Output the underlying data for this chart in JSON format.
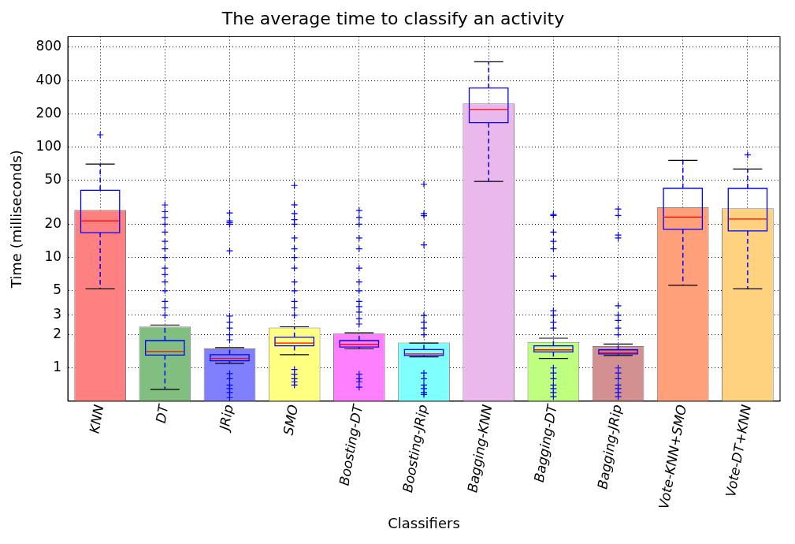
{
  "chart_data": {
    "type": "bar",
    "title": "The average time to classify an activity",
    "xlabel": "Classifiers",
    "ylabel": "Time (milliseconds)",
    "categories": [
      "KNN",
      "DT",
      "JRip",
      "SMO",
      "Boosting-DT",
      "Boosting-JRip",
      "Bagging-KNN",
      "Bagging-DT",
      "Bagging-JRip",
      "Vote-KNN+SMO",
      "Vote-DT+KNN"
    ],
    "series": [
      {
        "type": "bar",
        "colors": [
          "#ff8080",
          "#80bf80",
          "#8080ff",
          "#ffff80",
          "#ff80ff",
          "#80ffff",
          "#eab8ea",
          "#bfff80",
          "#d39090",
          "#ffa07a",
          "#ffd280"
        ],
        "values": [
          27,
          2.37,
          1.5,
          2.32,
          2.06,
          1.7,
          248,
          1.72,
          1.58,
          28.4,
          27.9
        ]
      },
      {
        "type": "box",
        "color": "#0000ff",
        "boxes": [
          {
            "low": 5.2,
            "q1": 16.8,
            "median": 21.5,
            "q3": 40.6,
            "high": 70,
            "outliers": [
              129
            ]
          },
          {
            "low": 0.64,
            "q1": 1.31,
            "median": 1.41,
            "q3": 1.77,
            "high": 2.45,
            "outliers": [
              3,
              3.5,
              4,
              5,
              6,
              7,
              8,
              10,
              12,
              14,
              17,
              20,
              23,
              26,
              29.9
            ]
          },
          {
            "low": 1.1,
            "q1": 1.16,
            "median": 1.22,
            "q3": 1.32,
            "high": 1.53,
            "outliers": [
              0.54,
              0.6,
              0.65,
              0.7,
              0.8,
              0.89,
              1.8,
              2,
              2.3,
              2.6,
              2.95,
              11.5,
              20,
              20.7,
              21.5,
              25.3
            ]
          },
          {
            "low": 1.32,
            "q1": 1.59,
            "median": 1.68,
            "q3": 1.9,
            "high": 2.36,
            "outliers": [
              0.7,
              0.75,
              0.8,
              0.88,
              0.97,
              3,
              3.5,
              4,
              5,
              6,
              8,
              10,
              12,
              15,
              20,
              22,
              25,
              30,
              44.9
            ]
          },
          {
            "low": 1.49,
            "q1": 1.55,
            "median": 1.63,
            "q3": 1.77,
            "high": 2.08,
            "outliers": [
              0.67,
              0.75,
              0.8,
              0.88,
              2.5,
              2.8,
              3.2,
              3.6,
              4,
              5,
              6,
              8,
              12,
              15,
              20,
              23,
              26.7
            ]
          },
          {
            "low": 1.26,
            "q1": 1.3,
            "median": 1.34,
            "q3": 1.47,
            "high": 1.68,
            "outliers": [
              0.575,
              0.6,
              0.65,
              0.7,
              0.8,
              0.9,
              2,
              2.3,
              2.6,
              2.99,
              13,
              23.9,
              25,
              46
            ]
          },
          {
            "low": 48.9,
            "q1": 166,
            "median": 219,
            "q3": 342,
            "high": 592
          },
          {
            "low": 1.22,
            "q1": 1.4,
            "median": 1.46,
            "q3": 1.59,
            "high": 1.86,
            "outliers": [
              0.55,
              0.6,
              0.65,
              0.7,
              0.8,
              0.9,
              1,
              2.3,
              2.6,
              3,
              3.3,
              6.8,
              12,
              14,
              17,
              24,
              24.5
            ]
          },
          {
            "low": 1.3,
            "q1": 1.34,
            "median": 1.38,
            "q3": 1.46,
            "high": 1.65,
            "outliers": [
              0.55,
              0.6,
              0.65,
              0.7,
              0.8,
              0.9,
              1,
              2,
              2.3,
              2.7,
              3,
              3.66,
              15,
              16,
              24,
              27.5
            ]
          },
          {
            "low": 5.6,
            "q1": 18,
            "median": 23.2,
            "q3": 42.4,
            "high": 75.9
          },
          {
            "low": 5.2,
            "q1": 17.4,
            "median": 22.3,
            "q3": 42.2,
            "high": 63.3,
            "outliers": [
              85
            ]
          }
        ]
      }
    ],
    "log": true,
    "ylim": [
      0.5,
      1000
    ],
    "yticks": [
      1,
      2,
      3,
      5,
      10,
      20,
      50,
      100,
      200,
      400,
      800
    ],
    "grid": true,
    "legend": false
  }
}
